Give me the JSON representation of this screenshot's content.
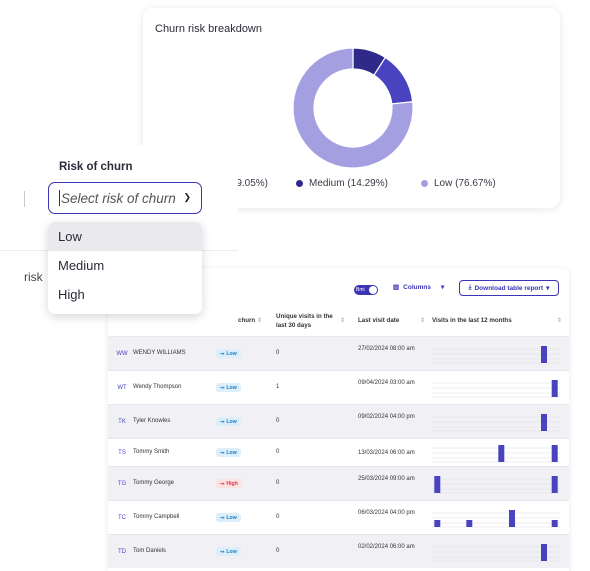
{
  "chart_card": {
    "title": "Churn risk breakdown",
    "legend": [
      {
        "label": "(9.05%)",
        "color": "#2f2a8a"
      },
      {
        "label": "Medium (14.29%)",
        "color": "#4a43c0"
      },
      {
        "label": "Low (76.67%)",
        "color": "#a49fe0"
      }
    ]
  },
  "chart_data": {
    "type": "pie",
    "variant": "donut",
    "title": "Churn risk breakdown",
    "slices": [
      {
        "label": "",
        "value": 9.05,
        "color": "#2f2a8a"
      },
      {
        "label": "Medium",
        "value": 14.29,
        "color": "#4a43c0"
      },
      {
        "label": "Low",
        "value": 76.67,
        "color": "#a49fe0"
      }
    ]
  },
  "filter": {
    "label": "Risk of churn",
    "placeholder": "Select risk of churn",
    "options": [
      "Low",
      "Medium",
      "High"
    ],
    "hovered_index": 0
  },
  "background_label": "risk",
  "table": {
    "toggle_label": "Bmi",
    "columns_button": "Columns",
    "download_button": "Download table report",
    "headers": {
      "churn": "churn",
      "visits_30": "Unique visits in the last 30 days",
      "last_visit": "Last visit date",
      "visits_12m": "Visits in the last 12 months"
    },
    "rows": [
      {
        "initials": "WW",
        "name": "WENDY WILLIAMS",
        "risk": "Low",
        "visits": "0",
        "last_visit": "27/02/2024 08:00 am",
        "bars": [
          0,
          0,
          0,
          0,
          0,
          0,
          0,
          0,
          0,
          0,
          1,
          0
        ]
      },
      {
        "initials": "WT",
        "name": "Wendy Thompson",
        "risk": "Low",
        "visits": "1",
        "last_visit": "09/04/2024 03:00 am",
        "bars": [
          0,
          0,
          0,
          0,
          0,
          0,
          0,
          0,
          0,
          0,
          0,
          1
        ]
      },
      {
        "initials": "TK",
        "name": "Tyler Knowles",
        "risk": "Low",
        "visits": "0",
        "last_visit": "09/02/2024 04:00 pm",
        "bars": [
          0,
          0,
          0,
          0,
          0,
          0,
          0,
          0,
          0,
          0,
          1,
          0
        ]
      },
      {
        "initials": "TS",
        "name": "Tommy Smith",
        "risk": "Low",
        "visits": "0",
        "last_visit": "13/03/2024 06:00 am",
        "bars": [
          0,
          0,
          0,
          0,
          0,
          0,
          1,
          0,
          0,
          0,
          0,
          1
        ]
      },
      {
        "initials": "TG",
        "name": "Tommy George",
        "risk": "High",
        "visits": "0",
        "last_visit": "25/03/2024 09:00 am",
        "bars": [
          1,
          0,
          0,
          0,
          0,
          0,
          0,
          0,
          0,
          0,
          0,
          1
        ]
      },
      {
        "initials": "TC",
        "name": "Tommy Campbell",
        "risk": "Low",
        "visits": "0",
        "last_visit": "06/03/2024 04:00 pm",
        "bars": [
          0.4,
          0,
          0,
          0.4,
          0,
          0,
          0,
          1,
          0,
          0,
          0,
          0.4
        ]
      },
      {
        "initials": "TD",
        "name": "Tom Daniels",
        "risk": "Low",
        "visits": "0",
        "last_visit": "02/02/2024 06:00 am",
        "bars": [
          0,
          0,
          0,
          0,
          0,
          0,
          0,
          0,
          0,
          0,
          1,
          0
        ]
      }
    ]
  },
  "colors": {
    "accent": "#3b34b5",
    "bar": "#4a43c0",
    "low_badge_bg": "#dbeefa",
    "high_badge_bg": "#fde2e2"
  }
}
